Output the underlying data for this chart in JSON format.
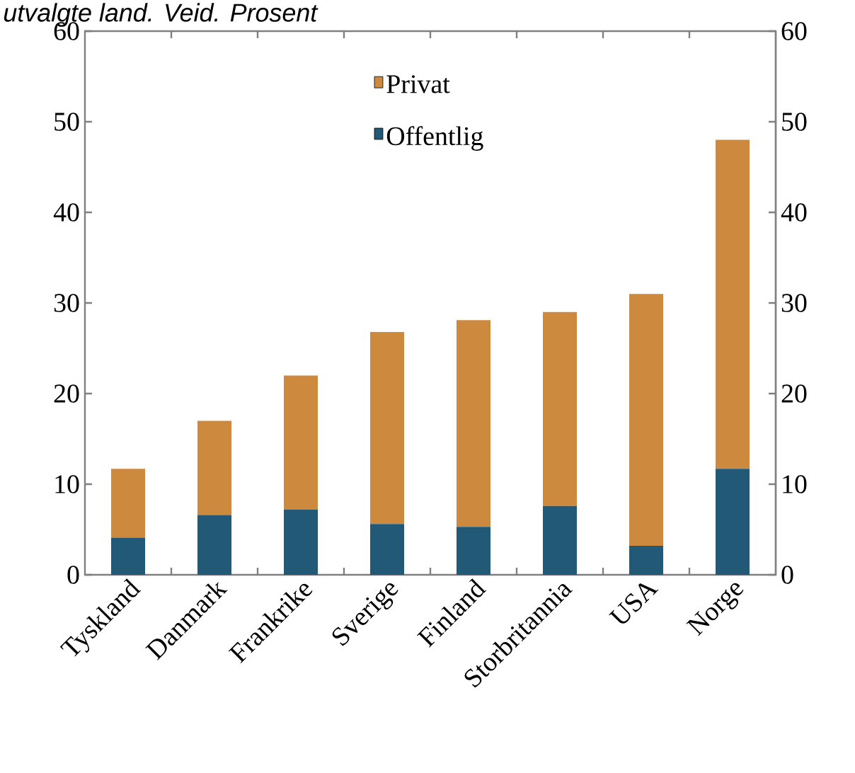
{
  "chart_data": {
    "type": "bar",
    "stacked": true,
    "title": "utvalgte land. Veid. Prosent",
    "categories": [
      "Tyskland",
      "Danmark",
      "Frankrike",
      "Sverige",
      "Finland",
      "Storbritannia",
      "USA",
      "Norge"
    ],
    "series": [
      {
        "name": "Offentlig",
        "color": "#215977",
        "values": [
          4.1,
          6.6,
          7.2,
          5.6,
          5.3,
          7.6,
          3.2,
          11.7
        ]
      },
      {
        "name": "Privat",
        "color": "#cd8a3f",
        "values": [
          7.6,
          10.4,
          14.8,
          21.2,
          22.8,
          21.4,
          27.8,
          36.3
        ]
      }
    ],
    "ylim": [
      0,
      60
    ],
    "yticks": [
      0,
      10,
      20,
      30,
      40,
      50,
      60
    ],
    "y2lim": [
      0,
      60
    ],
    "y2ticks": [
      0,
      10,
      20,
      30,
      40,
      50,
      60
    ],
    "legend": "top",
    "grid": false
  }
}
